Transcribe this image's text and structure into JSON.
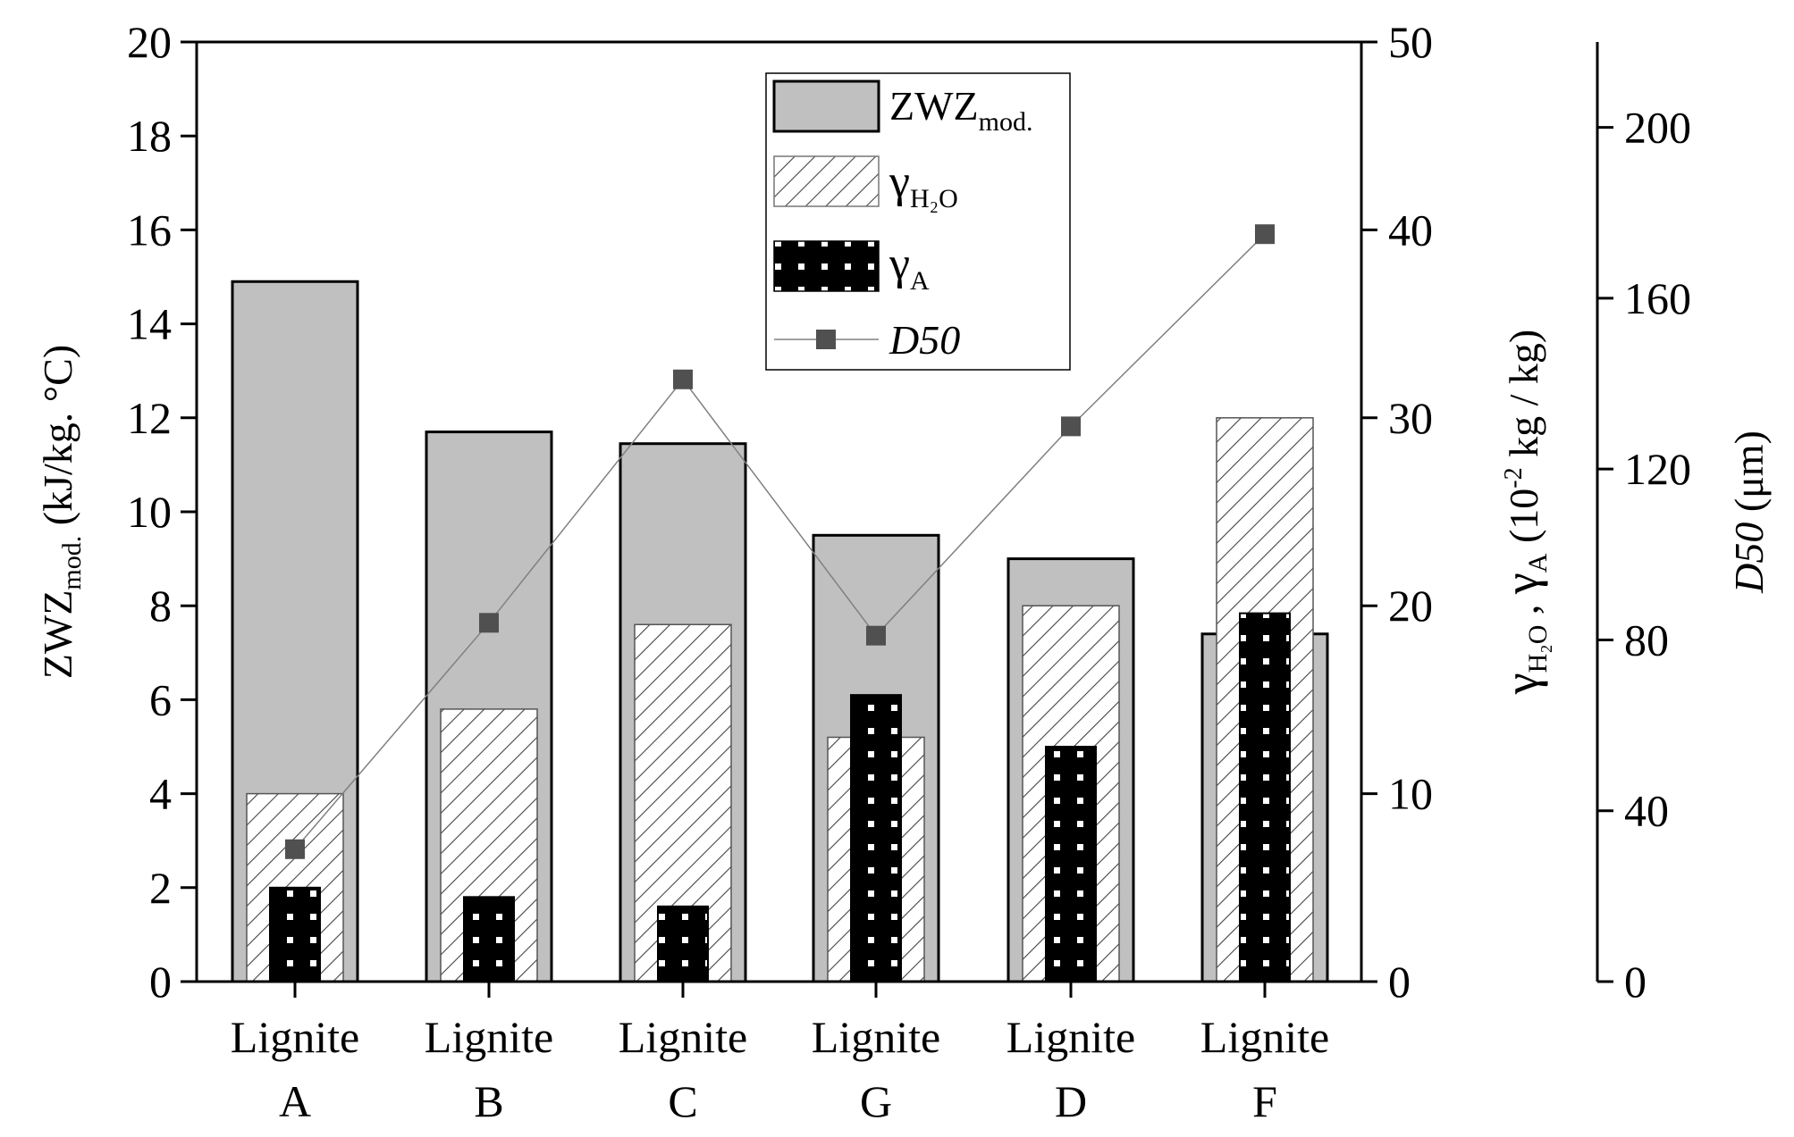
{
  "chart_data": {
    "type": "bar",
    "categories": [
      {
        "line1": "Lignite",
        "line2": "A"
      },
      {
        "line1": "Lignite",
        "line2": "B"
      },
      {
        "line1": "Lignite",
        "line2": "C"
      },
      {
        "line1": "Lignite",
        "line2": "G"
      },
      {
        "line1": "Lignite",
        "line2": "D"
      },
      {
        "line1": "Lignite",
        "line2": "F"
      }
    ],
    "series": [
      {
        "key": "zwz",
        "name_main": "ZWZ",
        "name_sub": "mod.",
        "axis": "left",
        "style": "solid-gray",
        "values": [
          14.9,
          11.7,
          11.45,
          9.5,
          9.0,
          7.4
        ]
      },
      {
        "key": "gh2o",
        "name_main": "γ",
        "name_sub": "H₂O",
        "axis": "right1",
        "style": "hatched",
        "values": [
          10,
          14.5,
          19,
          13,
          20,
          30
        ]
      },
      {
        "key": "ga",
        "name_main": "γ",
        "name_sub": "A",
        "axis": "right1",
        "style": "black-dotted",
        "values": [
          5,
          4.5,
          4,
          15.25,
          12.5,
          19.6
        ]
      },
      {
        "key": "d50",
        "name_main": "D50",
        "axis": "right2",
        "style": "line-square",
        "values": [
          31,
          84,
          141,
          81,
          130,
          175
        ]
      }
    ],
    "axes": {
      "left": {
        "label_main": "ZWZ",
        "label_sub": "mod.",
        "label_rest": " (kJ/kg. °C)",
        "ylim": [
          0,
          20
        ],
        "ticks": [
          "0",
          "2",
          "4",
          "6",
          "8",
          "10",
          "12",
          "14",
          "16",
          "18",
          "20"
        ]
      },
      "right1": {
        "label_g1": "γ",
        "label_sub1": "H₂O",
        "label_sep": " , ",
        "label_g2": "γ",
        "label_sub2": "A",
        "label_unit_a": " (10",
        "label_sup": "-2",
        "label_unit_b": " kg / kg)",
        "ylim": [
          0,
          50
        ],
        "ticks": [
          "0",
          "10",
          "20",
          "30",
          "40",
          "50"
        ]
      },
      "right2": {
        "label_main": "D50",
        "label_rest": " (μm)",
        "ylim": [
          0,
          220
        ],
        "ticks": [
          "0",
          "40",
          "80",
          "120",
          "160",
          "200"
        ]
      }
    },
    "legend_placement": "top-center",
    "grid": false
  },
  "colors": {
    "zwz_fill": "#c0c0c0",
    "ga_fill": "#000000",
    "d50_marker": "#505050",
    "d50_line": "#808080",
    "axis": "#000000"
  }
}
